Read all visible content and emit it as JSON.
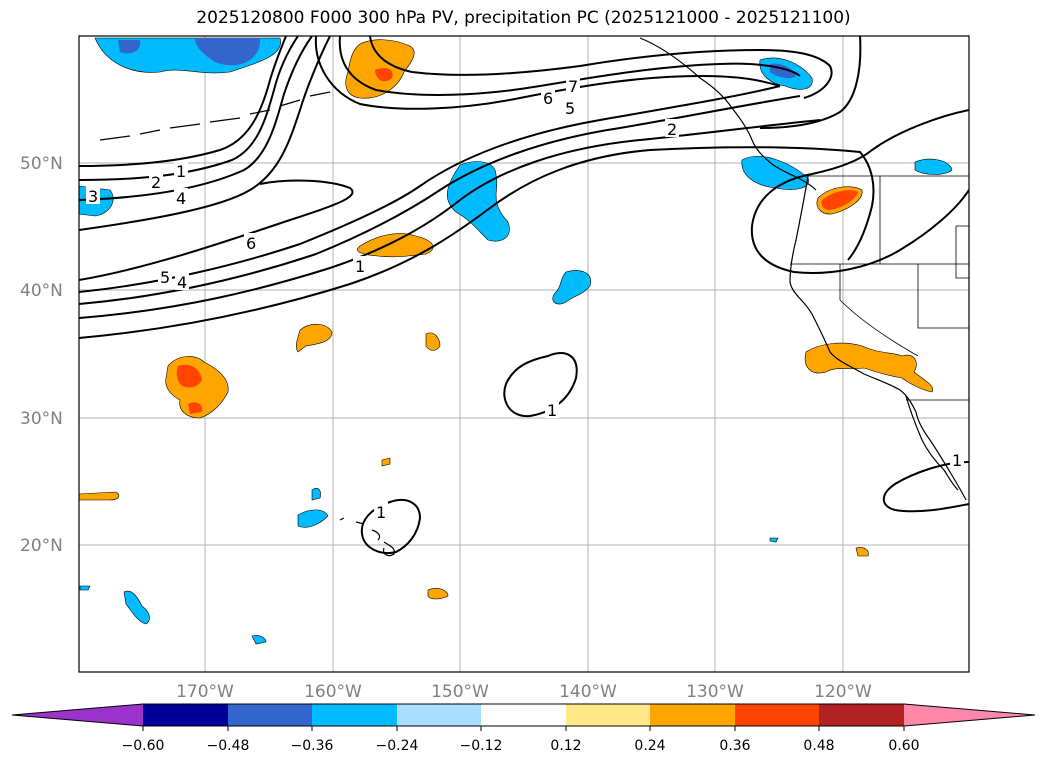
{
  "title": "2025120800 F000 300 hPa PV, precipitation PC (2025121000 - 2025121100)",
  "map": {
    "lat_labels": [
      "50°N",
      "40°N",
      "30°N",
      "20°N"
    ],
    "lon_labels": [
      "170°W",
      "160°W",
      "150°W",
      "140°W",
      "130°W",
      "120°W"
    ]
  },
  "contour_labels": {
    "c1": "1",
    "c2": "2",
    "c3": "3",
    "c4": "4",
    "c6": "6",
    "c5": "5",
    "c4b": "4",
    "c1b": "1",
    "c7n": "7",
    "c6n": "6",
    "c5n": "5",
    "c2n": "2",
    "c1c": "1",
    "c1d": "1",
    "c1e": "1"
  },
  "colorbar": {
    "ticks": [
      "−0.60",
      "−0.48",
      "−0.36",
      "−0.24",
      "−0.12",
      "0.12",
      "0.24",
      "0.36",
      "0.48",
      "0.60"
    ],
    "colors": [
      "#9933cc",
      "#000099",
      "#3366cc",
      "#00bbff",
      "#aadeff",
      "#ffffff",
      "#ffe88a",
      "#ffa500",
      "#ff4400",
      "#b22222",
      "#ff88aa"
    ]
  },
  "shading_colors": {
    "neg_light": "#00bbff",
    "neg_mid": "#3366cc",
    "pos_light": "#ffa500",
    "pos_mid": "#ff4400"
  }
}
